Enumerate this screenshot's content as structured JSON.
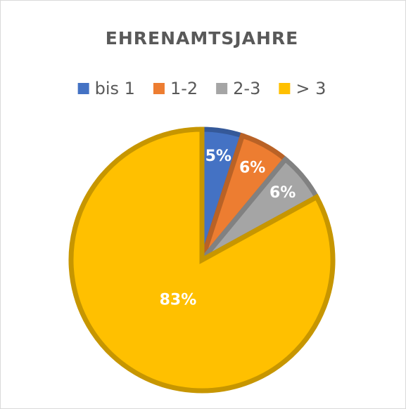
{
  "chart_data": {
    "type": "pie",
    "title": "EHRENAMTSJAHRE",
    "categories": [
      "bis 1",
      "1-2",
      "2-3",
      "> 3"
    ],
    "values": [
      5,
      6,
      6,
      83
    ],
    "value_labels": [
      "5%",
      "6%",
      "6%",
      "83%"
    ],
    "colors": [
      "#4472c4",
      "#ed7d31",
      "#a5a5a5",
      "#ffc000"
    ],
    "legend": "top"
  }
}
